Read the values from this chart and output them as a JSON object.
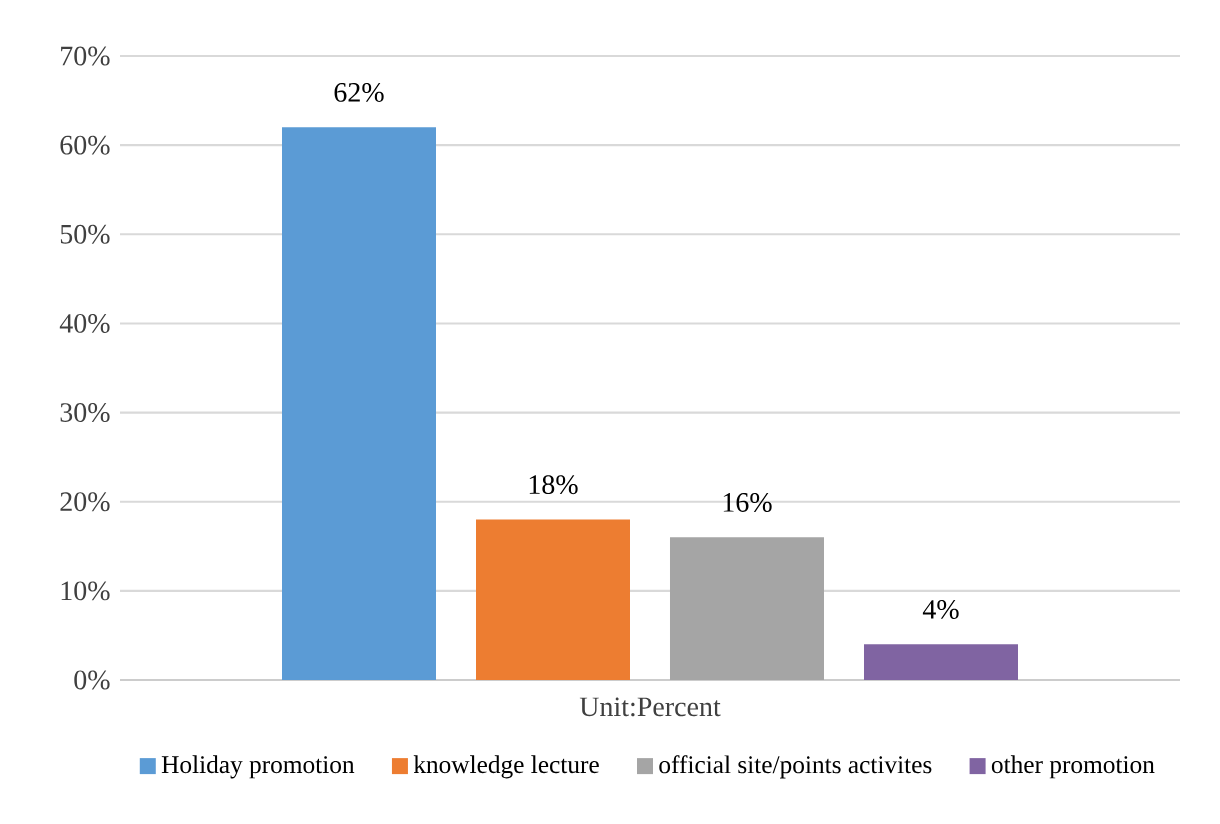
{
  "chart_data": {
    "type": "bar",
    "categories": [
      "Unit:Percent"
    ],
    "series": [
      {
        "name": "Holiday promotion",
        "color": "#5b9bd5",
        "values": [
          62
        ],
        "value_labels": [
          "62%"
        ]
      },
      {
        "name": "knowledge lecture",
        "color": "#ed7d31",
        "values": [
          18
        ],
        "value_labels": [
          "18%"
        ]
      },
      {
        "name": "official site/points activites",
        "color": "#a5a5a5",
        "values": [
          16
        ],
        "value_labels": [
          "16%"
        ]
      },
      {
        "name": "other promotion",
        "color": "#8064a2",
        "values": [
          4
        ],
        "value_labels": [
          "4%"
        ]
      }
    ],
    "ylim": [
      0,
      70
    ],
    "yticks": [
      {
        "value": 0,
        "label": "0%"
      },
      {
        "value": 10,
        "label": "10%"
      },
      {
        "value": 20,
        "label": "20%"
      },
      {
        "value": 30,
        "label": "30%"
      },
      {
        "value": 40,
        "label": "40%"
      },
      {
        "value": 50,
        "label": "50%"
      },
      {
        "value": 60,
        "label": "60%"
      },
      {
        "value": 70,
        "label": "70%"
      }
    ],
    "grid": "y",
    "legend": "bottom"
  }
}
